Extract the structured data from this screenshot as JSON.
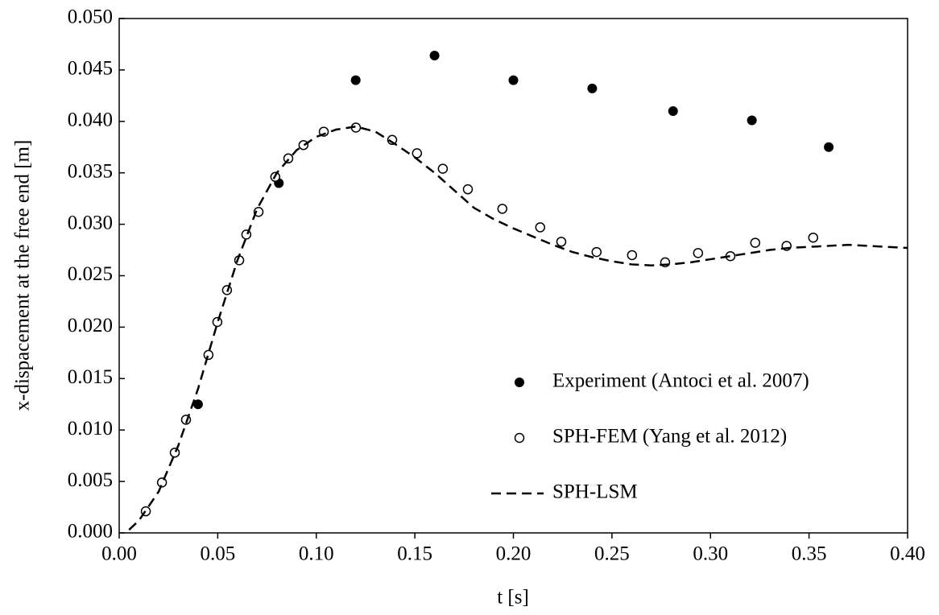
{
  "chart_data": {
    "type": "scatter",
    "xlabel": "t [s]",
    "ylabel": "x-dispacement at the free end [m]",
    "xlim": [
      0,
      0.4
    ],
    "ylim": [
      0,
      0.05
    ],
    "xticks": [
      {
        "value": 0,
        "label": "0.00"
      },
      {
        "value": 0.05,
        "label": "0.05"
      },
      {
        "value": 0.1,
        "label": "0.10"
      },
      {
        "value": 0.15,
        "label": "0.15"
      },
      {
        "value": 0.2,
        "label": "0.20"
      },
      {
        "value": 0.25,
        "label": "0.25"
      },
      {
        "value": 0.3,
        "label": "0.30"
      },
      {
        "value": 0.35,
        "label": "0.35"
      },
      {
        "value": 0.4,
        "label": "0.40"
      }
    ],
    "yticks": [
      {
        "value": 0,
        "label": "0.000"
      },
      {
        "value": 0.005,
        "label": "0.005"
      },
      {
        "value": 0.01,
        "label": "0.010"
      },
      {
        "value": 0.015,
        "label": "0.015"
      },
      {
        "value": 0.02,
        "label": "0.020"
      },
      {
        "value": 0.025,
        "label": "0.025"
      },
      {
        "value": 0.03,
        "label": "0.030"
      },
      {
        "value": 0.035,
        "label": "0.035"
      },
      {
        "value": 0.04,
        "label": "0.040"
      },
      {
        "value": 0.045,
        "label": "0.045"
      },
      {
        "value": 0.05,
        "label": "0.050"
      }
    ],
    "legend": "lower right",
    "series": [
      {
        "name": "Experiment (Antoci et al. 2007)",
        "color": "#000000",
        "marker": "filled",
        "x": [
          0.04,
          0.081,
          0.12,
          0.16,
          0.2,
          0.24,
          0.281,
          0.321,
          0.36
        ],
        "values": [
          0.0125,
          0.034,
          0.044,
          0.0464,
          0.044,
          0.0432,
          0.041,
          0.0401,
          0.0375
        ]
      },
      {
        "name": "SPH-FEM (Yang et al. 2012)",
        "color": "#000000",
        "marker": "open",
        "x": [
          0.0135,
          0.0217,
          0.0282,
          0.0339,
          0.0453,
          0.0498,
          0.0547,
          0.0609,
          0.0645,
          0.0707,
          0.0792,
          0.0858,
          0.0935,
          0.1038,
          0.1201,
          0.1385,
          0.1511,
          0.1642,
          0.1769,
          0.1944,
          0.2136,
          0.2243,
          0.2422,
          0.2602,
          0.277,
          0.2937,
          0.3101,
          0.3227,
          0.3386,
          0.3521
        ],
        "values": [
          0.0021,
          0.0049,
          0.0078,
          0.011,
          0.0173,
          0.0205,
          0.0236,
          0.0265,
          0.029,
          0.0312,
          0.0346,
          0.0364,
          0.0377,
          0.039,
          0.0394,
          0.0382,
          0.0369,
          0.0354,
          0.0334,
          0.0315,
          0.0297,
          0.0283,
          0.0273,
          0.027,
          0.0263,
          0.0272,
          0.0269,
          0.0282,
          0.0279,
          0.0287
        ]
      },
      {
        "name": "SPH-LSM",
        "color": "#000000",
        "marker": "line",
        "dash": "dashed",
        "x": [
          0.005,
          0.01,
          0.02,
          0.03,
          0.04,
          0.05,
          0.06,
          0.07,
          0.08,
          0.09,
          0.1,
          0.11,
          0.12,
          0.13,
          0.14,
          0.15,
          0.16,
          0.17,
          0.18,
          0.19,
          0.2,
          0.21,
          0.22,
          0.23,
          0.24,
          0.25,
          0.26,
          0.27,
          0.28,
          0.29,
          0.3,
          0.31,
          0.32,
          0.33,
          0.34,
          0.35,
          0.36,
          0.37,
          0.38,
          0.39,
          0.4
        ],
        "values": [
          0.0003,
          0.0012,
          0.004,
          0.0085,
          0.014,
          0.0205,
          0.0265,
          0.0315,
          0.035,
          0.0372,
          0.0385,
          0.0392,
          0.0395,
          0.039,
          0.0378,
          0.0365,
          0.035,
          0.0333,
          0.0316,
          0.0305,
          0.0296,
          0.0288,
          0.028,
          0.0273,
          0.0268,
          0.0264,
          0.0261,
          0.026,
          0.0261,
          0.0263,
          0.0266,
          0.0269,
          0.0272,
          0.0275,
          0.0277,
          0.0278,
          0.0279,
          0.028,
          0.0279,
          0.0278,
          0.0277
        ]
      }
    ]
  }
}
